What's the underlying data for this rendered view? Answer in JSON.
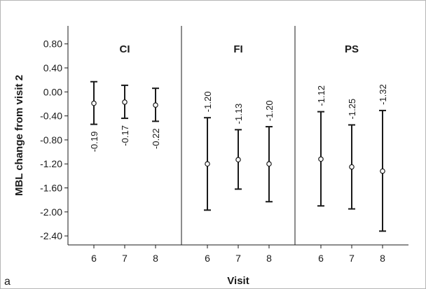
{
  "chart_data": {
    "type": "scatter",
    "panel_letter": "a",
    "xlabel": "Visit",
    "ylabel": "MBL change from visit 2",
    "ylim": [
      -2.55,
      1.1
    ],
    "yticks": [
      0.8,
      0.4,
      0.0,
      -0.4,
      -0.8,
      -1.2,
      -1.6,
      -2.0,
      -2.4
    ],
    "ytick_labels": [
      "0.80",
      "0.40",
      "0.00",
      "-0.40",
      "-0.80",
      "-1.20",
      "-1.60",
      "-2.00",
      "-2.40"
    ],
    "x": [
      "6",
      "7",
      "8"
    ],
    "panels": [
      {
        "name": "CI",
        "points": [
          {
            "x": "6",
            "y": -0.19,
            "lower": -0.54,
            "upper": 0.17,
            "label": "-0.19"
          },
          {
            "x": "7",
            "y": -0.17,
            "lower": -0.44,
            "upper": 0.11,
            "label": "-0.17"
          },
          {
            "x": "8",
            "y": -0.22,
            "lower": -0.49,
            "upper": 0.06,
            "label": "-0.22"
          }
        ]
      },
      {
        "name": "FI",
        "points": [
          {
            "x": "6",
            "y": -1.2,
            "lower": -1.97,
            "upper": -0.43,
            "label": "-1.20"
          },
          {
            "x": "7",
            "y": -1.13,
            "lower": -1.62,
            "upper": -0.63,
            "label": "-1.13"
          },
          {
            "x": "8",
            "y": -1.2,
            "lower": -1.83,
            "upper": -0.58,
            "label": "-1.20"
          }
        ]
      },
      {
        "name": "PS",
        "points": [
          {
            "x": "6",
            "y": -1.12,
            "lower": -1.9,
            "upper": -0.33,
            "label": "-1.12"
          },
          {
            "x": "7",
            "y": -1.25,
            "lower": -1.95,
            "upper": -0.55,
            "label": "-1.25"
          },
          {
            "x": "8",
            "y": -1.32,
            "lower": -2.32,
            "upper": -0.31,
            "label": "-1.32"
          }
        ]
      }
    ],
    "grid": false,
    "legend": "none"
  }
}
